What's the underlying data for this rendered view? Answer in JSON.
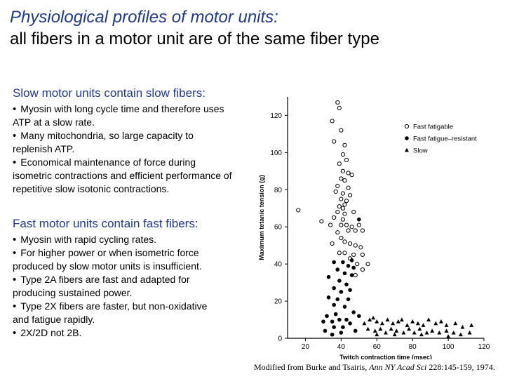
{
  "header": {
    "title_line1": "Physiological profiles of motor units:",
    "title_line2": "all fibers in a motor unit are of the same fiber type"
  },
  "slow_section": {
    "heading": "Slow motor units contain slow fibers:",
    "bullets": [
      {
        "first": "Myosin with long cycle time and therefore uses",
        "rest": "ATP at a slow rate."
      },
      {
        "first": "Many mitochondria, so large capacity to",
        "rest": "replenish ATP."
      },
      {
        "first": "Economical maintenance of force during",
        "rest": "isometric contractions and efficient performance of repetitive slow isotonic contractions."
      }
    ]
  },
  "fast_section": {
    "heading": "Fast motor units contain fast fibers:",
    "bullets": [
      {
        "first": "Myosin with rapid cycling rates.",
        "rest": ""
      },
      {
        "first": "For higher power or when isometric force",
        "rest": "produced by slow motor units is insufficient."
      },
      {
        "first": "Type 2A fibers are fast and adapted for",
        "rest": "producing sustained power."
      },
      {
        "first": "Type 2X fibers are faster, but non-oxidative",
        "rest": "and fatigue rapidly."
      },
      {
        "first": "2X/2D not 2B.",
        "rest": ""
      }
    ]
  },
  "citation": {
    "prefix": "Modified from Burke and Tsairis, ",
    "journal": "Ann NY Acad Sci",
    "suffix": " 228:145-159, 1974."
  },
  "chart_data": {
    "type": "scatter",
    "xlabel": "Twitch contraction time (msec)",
    "ylabel": "Maximum tetanic tension (g)",
    "xlim": [
      10,
      120
    ],
    "ylim": [
      0,
      130
    ],
    "xticks": [
      "20",
      "40",
      "60",
      "80",
      "100",
      "120"
    ],
    "yticks": [
      "0",
      "20",
      "40",
      "60",
      "80",
      "100",
      "120"
    ],
    "grid": false,
    "legend_position": "top-right",
    "colors": {
      "axis": "#000000",
      "fast_fatigable": "#000000",
      "fast_fatigue_resistant": "#000000",
      "slow": "#000000"
    },
    "series": [
      {
        "name": "Fast fatigable",
        "marker": "open-circle",
        "points": [
          [
            38,
            127
          ],
          [
            39,
            124
          ],
          [
            35,
            117
          ],
          [
            40,
            112
          ],
          [
            36,
            106
          ],
          [
            42,
            104
          ],
          [
            41,
            99
          ],
          [
            43,
            96
          ],
          [
            39,
            94
          ],
          [
            41,
            90
          ],
          [
            44,
            89
          ],
          [
            40,
            86
          ],
          [
            42,
            85
          ],
          [
            46,
            88
          ],
          [
            38,
            82
          ],
          [
            44,
            81
          ],
          [
            37,
            79
          ],
          [
            41,
            78
          ],
          [
            45,
            77
          ],
          [
            40,
            75
          ],
          [
            42,
            72
          ],
          [
            43,
            74
          ],
          [
            16,
            69
          ],
          [
            39,
            71
          ],
          [
            41,
            70
          ],
          [
            38,
            68
          ],
          [
            42,
            67
          ],
          [
            36,
            65
          ],
          [
            41,
            64
          ],
          [
            47,
            68
          ],
          [
            29,
            63
          ],
          [
            34,
            61
          ],
          [
            40,
            61
          ],
          [
            43,
            61
          ],
          [
            46,
            60
          ],
          [
            50,
            61
          ],
          [
            44,
            58
          ],
          [
            48,
            58
          ],
          [
            38,
            57
          ],
          [
            52,
            58
          ],
          [
            40,
            54
          ],
          [
            42,
            52
          ],
          [
            45,
            51
          ],
          [
            35,
            51
          ],
          [
            48,
            50
          ],
          [
            51,
            49
          ],
          [
            39,
            46
          ],
          [
            42,
            46
          ],
          [
            47,
            45
          ],
          [
            52,
            45
          ],
          [
            45,
            43
          ],
          [
            49,
            40
          ],
          [
            55,
            40
          ],
          [
            52,
            37
          ],
          [
            48,
            34
          ]
        ]
      },
      {
        "name": "Fast fatigue–resistant",
        "marker": "filled-circle",
        "points": [
          [
            50,
            64
          ],
          [
            46,
            42
          ],
          [
            36,
            41
          ],
          [
            41,
            41
          ],
          [
            44,
            39
          ],
          [
            47,
            38
          ],
          [
            38,
            37
          ],
          [
            42,
            35
          ],
          [
            46,
            34
          ],
          [
            33,
            33
          ],
          [
            39,
            31
          ],
          [
            43,
            29
          ],
          [
            36,
            27
          ],
          [
            40,
            25
          ],
          [
            45,
            26
          ],
          [
            33,
            22
          ],
          [
            38,
            21
          ],
          [
            44,
            21
          ],
          [
            36,
            18
          ],
          [
            42,
            17
          ],
          [
            32,
            12
          ],
          [
            37,
            13
          ],
          [
            47,
            14
          ],
          [
            50,
            12
          ],
          [
            35,
            9
          ],
          [
            39,
            10
          ],
          [
            43,
            10
          ],
          [
            30,
            9
          ],
          [
            45,
            8
          ],
          [
            36,
            6
          ],
          [
            41,
            6
          ],
          [
            31,
            4
          ],
          [
            48,
            4
          ],
          [
            40,
            3
          ],
          [
            35,
            2
          ]
        ]
      },
      {
        "name": "Slow",
        "marker": "filled-triangle",
        "points": [
          [
            53,
            8
          ],
          [
            56,
            10
          ],
          [
            58,
            11
          ],
          [
            60,
            9
          ],
          [
            63,
            8
          ],
          [
            66,
            10
          ],
          [
            69,
            8
          ],
          [
            72,
            9
          ],
          [
            74,
            10
          ],
          [
            77,
            7
          ],
          [
            80,
            9
          ],
          [
            83,
            8
          ],
          [
            86,
            7
          ],
          [
            89,
            10
          ],
          [
            93,
            8
          ],
          [
            96,
            9
          ],
          [
            99,
            7
          ],
          [
            104,
            8
          ],
          [
            108,
            6
          ],
          [
            113,
            7
          ],
          [
            55,
            5
          ],
          [
            59,
            4
          ],
          [
            62,
            5
          ],
          [
            65,
            3
          ],
          [
            68,
            5
          ],
          [
            71,
            4
          ],
          [
            75,
            3
          ],
          [
            78,
            5
          ],
          [
            81,
            3
          ],
          [
            84,
            5
          ],
          [
            88,
            3
          ],
          [
            91,
            4
          ],
          [
            95,
            3
          ],
          [
            99,
            4
          ],
          [
            103,
            3
          ],
          [
            107,
            2
          ],
          [
            112,
            3
          ],
          [
            60,
            2
          ],
          [
            70,
            2
          ],
          [
            85,
            2
          ],
          [
            100,
            1
          ]
        ]
      }
    ]
  }
}
